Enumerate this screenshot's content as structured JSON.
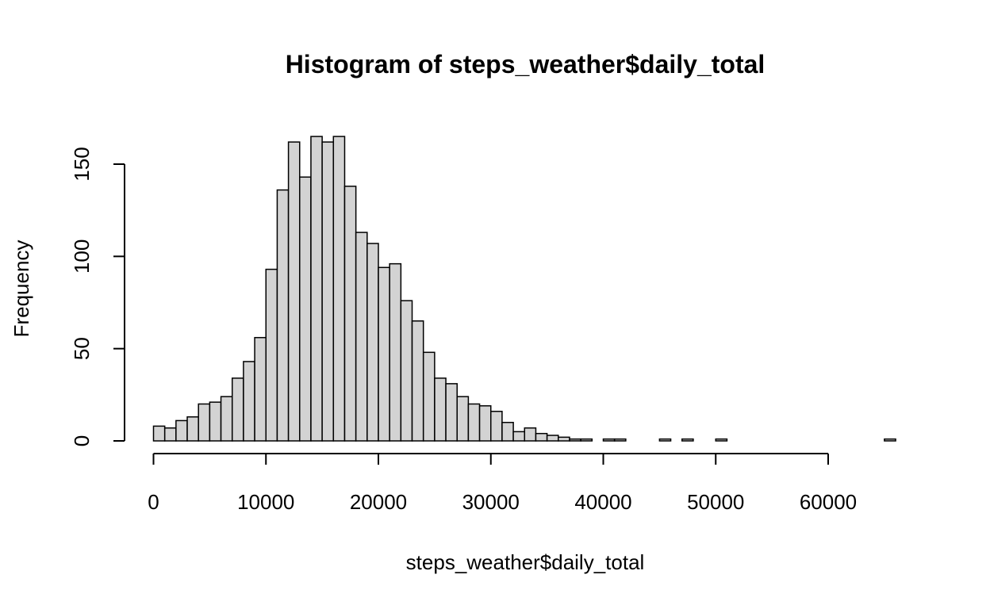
{
  "chart_data": {
    "type": "bar",
    "title": "Histogram of steps_weather$daily_total",
    "xlabel": "steps_weather$daily_total",
    "ylabel": "Frequency",
    "bin_width": 1000,
    "bin_start": 0,
    "values": [
      8,
      7,
      11,
      13,
      20,
      21,
      24,
      34,
      43,
      56,
      93,
      136,
      162,
      143,
      165,
      162,
      165,
      138,
      113,
      107,
      94,
      96,
      76,
      65,
      48,
      34,
      31,
      24,
      20,
      19,
      16,
      10,
      5,
      7,
      4,
      3,
      2,
      1,
      1,
      0,
      1,
      1,
      0,
      0,
      0,
      1,
      0,
      1,
      0,
      0,
      1,
      0,
      0,
      0,
      0,
      0,
      0,
      0,
      0,
      0,
      0,
      0,
      0,
      0,
      0,
      1
    ],
    "xlim": [
      0,
      66000
    ],
    "ylim": [
      0,
      165
    ],
    "x_ticks": [
      0,
      10000,
      20000,
      30000,
      40000,
      50000,
      60000
    ],
    "y_ticks": [
      0,
      50,
      100,
      150
    ],
    "bar_color": "#d3d3d3",
    "edge_color": "#000000",
    "grid": false
  }
}
